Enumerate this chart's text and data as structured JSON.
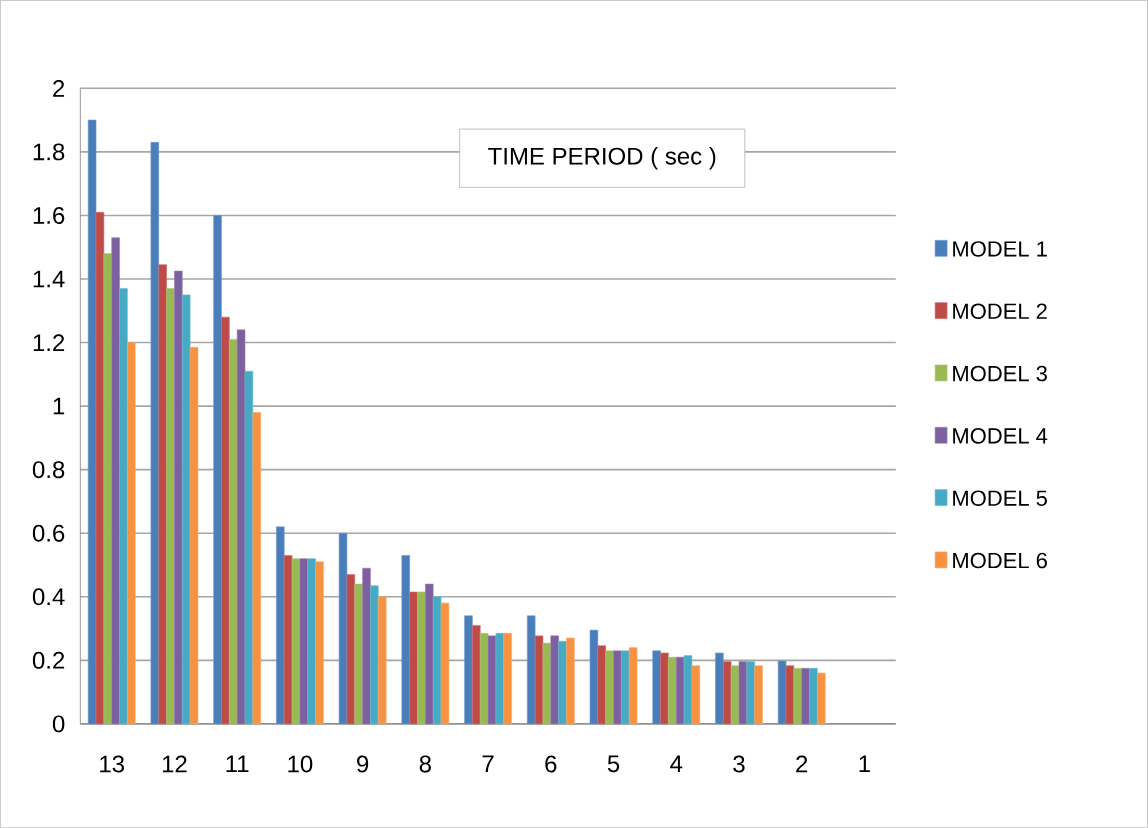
{
  "chart_data": {
    "type": "bar",
    "title": "TIME PERIOD ( sec )",
    "categories": [
      "13",
      "12",
      "11",
      "10",
      "9",
      "8",
      "7",
      "6",
      "5",
      "4",
      "3",
      "2",
      "1"
    ],
    "series": [
      {
        "name": "MODEL 1",
        "color": "#4a7ebb",
        "values": [
          1.9,
          1.83,
          1.6,
          0.62,
          0.6,
          0.53,
          0.34,
          0.34,
          0.295,
          0.23,
          0.223,
          0.198,
          null
        ]
      },
      {
        "name": "MODEL 2",
        "color": "#be4b48",
        "values": [
          1.61,
          1.445,
          1.28,
          0.53,
          0.47,
          0.415,
          0.31,
          0.277,
          0.246,
          0.223,
          0.196,
          0.183,
          null
        ]
      },
      {
        "name": "MODEL 3",
        "color": "#98b954",
        "values": [
          1.48,
          1.37,
          1.21,
          0.52,
          0.44,
          0.415,
          0.285,
          0.254,
          0.23,
          0.21,
          0.183,
          0.175,
          null
        ]
      },
      {
        "name": "MODEL 4",
        "color": "#7d60a0",
        "values": [
          1.53,
          1.425,
          1.24,
          0.52,
          0.49,
          0.44,
          0.277,
          0.277,
          0.23,
          0.21,
          0.196,
          0.175,
          null
        ]
      },
      {
        "name": "MODEL 5",
        "color": "#46aac5",
        "values": [
          1.37,
          1.35,
          1.11,
          0.52,
          0.435,
          0.4,
          0.285,
          0.26,
          0.23,
          0.215,
          0.196,
          0.175,
          null
        ]
      },
      {
        "name": "MODEL 6",
        "color": "#f69240",
        "values": [
          1.2,
          1.185,
          0.98,
          0.51,
          0.4,
          0.38,
          0.285,
          0.27,
          0.24,
          0.183,
          0.183,
          0.16,
          null
        ]
      }
    ],
    "ylim": [
      0,
      2
    ],
    "yticks": [
      0,
      0.2,
      0.4,
      0.6,
      0.8,
      1,
      1.2,
      1.4,
      1.6,
      1.8,
      2
    ],
    "grid": "y",
    "legend": "right"
  }
}
